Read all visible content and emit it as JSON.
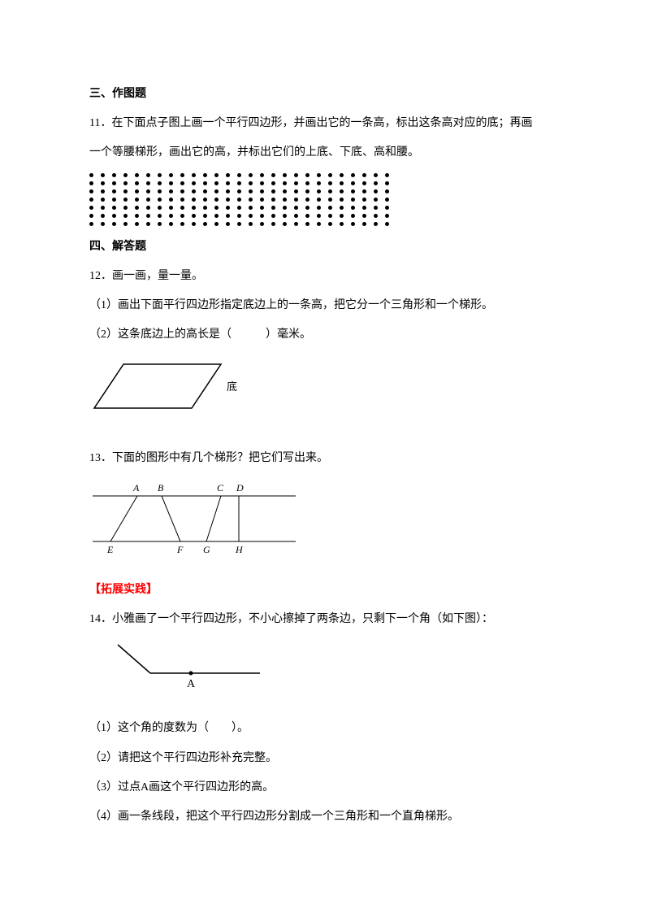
{
  "section3": {
    "title": "三、作图题",
    "q11_l1": "11．在下面点子图上画一个平行四边形，并画出它的一条高，标出这条高对应的底；再画",
    "q11_l2": "一个等腰梯形，画出它的高，并标出它们的上底、下底、高和腰。",
    "dot_grid": {
      "rows": 7,
      "cols": 27,
      "dot_color": "#000000"
    }
  },
  "section4": {
    "title": "四、解答题",
    "q12_title": "12．画一画，量一量。",
    "q12_1": "（1）画出下面平行四边形指定底边上的一条高，把它分一个三角形和一个梯形。",
    "q12_2": "（2）这条底边上的高长是（　　　）毫米。",
    "parallelogram": {
      "label": "底",
      "stroke": "#000000"
    },
    "q13_title": "13．下面的图形中有几个梯形？把它们写出来。",
    "trapezoid": {
      "labels": {
        "A": "A",
        "B": "B",
        "C": "C",
        "D": "D",
        "E": "E",
        "F": "F",
        "G": "G",
        "H": "H"
      },
      "label_style": "italic"
    }
  },
  "ext": {
    "title": "【拓展实践】",
    "q14_title": "14．小雅画了一个平行四边形，不小心擦掉了两条边，只剩下一个角（如下图）：",
    "angle_label": "A",
    "q14_1": "（1）这个角的度数为（　　）。",
    "q14_2": "（2）请把这个平行四边形补充完整。",
    "q14_3": "（3）过点A画这个平行四边形的高。",
    "q14_4": "（4）画一条线段，把这个平行四边形分割成一个三角形和一个直角梯形。"
  },
  "colors": {
    "text": "#000000",
    "red": "#ff0000",
    "bg": "#ffffff"
  }
}
